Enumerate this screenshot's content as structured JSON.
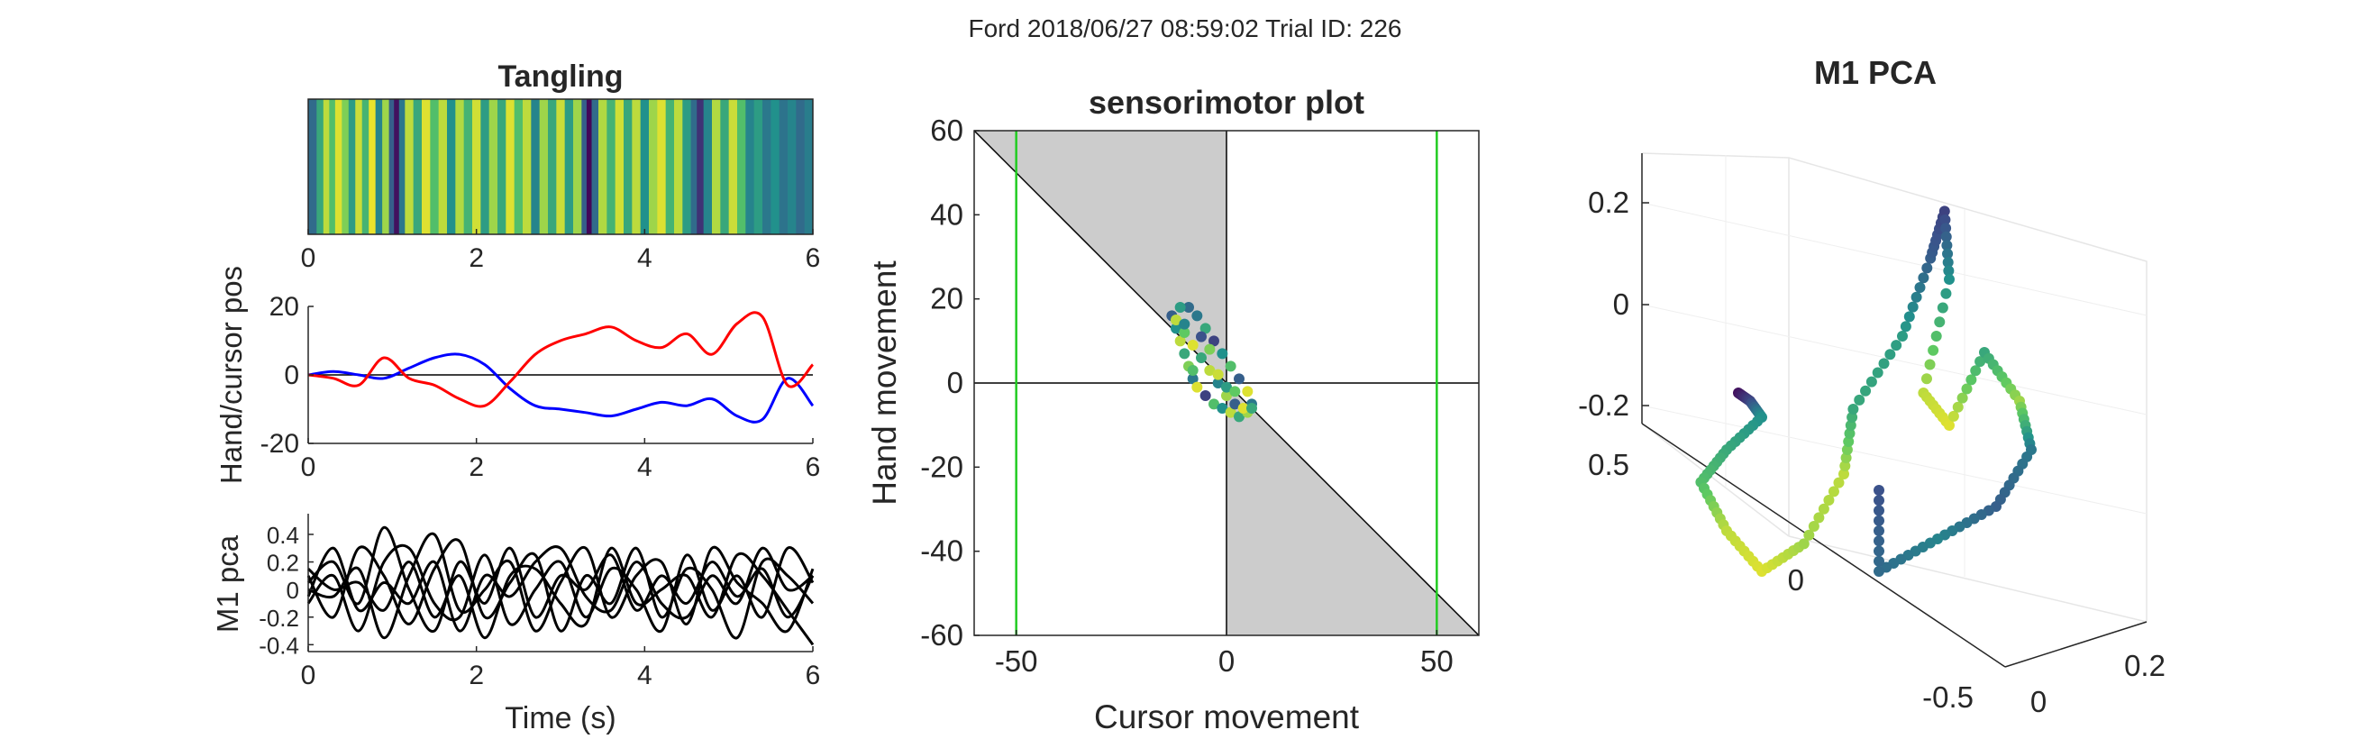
{
  "figure": {
    "suptitle": "Ford 2018/06/27 08:59:02 Trial ID: 226"
  },
  "chart_data": [
    {
      "id": "tangling",
      "type": "heatmap",
      "title": "Tangling",
      "xlim": [
        0,
        6
      ],
      "xticks": [
        "0",
        "2",
        "4",
        "6"
      ],
      "colormap": "viridis",
      "stripes": [
        {
          "x": 0.0,
          "v": 0.35
        },
        {
          "x": 0.1,
          "v": 0.6
        },
        {
          "x": 0.18,
          "v": 0.9
        },
        {
          "x": 0.25,
          "v": 0.7
        },
        {
          "x": 0.32,
          "v": 0.95
        },
        {
          "x": 0.4,
          "v": 0.8
        },
        {
          "x": 0.48,
          "v": 0.55
        },
        {
          "x": 0.56,
          "v": 0.92
        },
        {
          "x": 0.64,
          "v": 0.65
        },
        {
          "x": 0.72,
          "v": 0.97
        },
        {
          "x": 0.8,
          "v": 0.45
        },
        {
          "x": 0.88,
          "v": 0.85
        },
        {
          "x": 0.96,
          "v": 0.3
        },
        {
          "x": 1.02,
          "v": 0.05
        },
        {
          "x": 1.08,
          "v": 0.4
        },
        {
          "x": 1.15,
          "v": 0.9
        },
        {
          "x": 1.25,
          "v": 0.6
        },
        {
          "x": 1.35,
          "v": 0.95
        },
        {
          "x": 1.45,
          "v": 0.7
        },
        {
          "x": 1.55,
          "v": 0.9
        },
        {
          "x": 1.65,
          "v": 0.5
        },
        {
          "x": 1.75,
          "v": 0.88
        },
        {
          "x": 1.85,
          "v": 0.65
        },
        {
          "x": 1.95,
          "v": 0.93
        },
        {
          "x": 2.05,
          "v": 0.55
        },
        {
          "x": 2.15,
          "v": 0.85
        },
        {
          "x": 2.25,
          "v": 0.6
        },
        {
          "x": 2.35,
          "v": 0.95
        },
        {
          "x": 2.45,
          "v": 0.7
        },
        {
          "x": 2.55,
          "v": 0.9
        },
        {
          "x": 2.65,
          "v": 0.45
        },
        {
          "x": 2.75,
          "v": 0.85
        },
        {
          "x": 2.85,
          "v": 0.6
        },
        {
          "x": 2.95,
          "v": 0.92
        },
        {
          "x": 3.05,
          "v": 0.55
        },
        {
          "x": 3.15,
          "v": 0.85
        },
        {
          "x": 3.25,
          "v": 0.3
        },
        {
          "x": 3.31,
          "v": 0.02
        },
        {
          "x": 3.37,
          "v": 0.35
        },
        {
          "x": 3.45,
          "v": 0.88
        },
        {
          "x": 3.55,
          "v": 0.65
        },
        {
          "x": 3.65,
          "v": 0.93
        },
        {
          "x": 3.75,
          "v": 0.6
        },
        {
          "x": 3.85,
          "v": 0.9
        },
        {
          "x": 3.95,
          "v": 0.5
        },
        {
          "x": 4.05,
          "v": 0.85
        },
        {
          "x": 4.15,
          "v": 0.95
        },
        {
          "x": 4.25,
          "v": 0.65
        },
        {
          "x": 4.35,
          "v": 0.9
        },
        {
          "x": 4.45,
          "v": 0.55
        },
        {
          "x": 4.55,
          "v": 0.35
        },
        {
          "x": 4.62,
          "v": 0.15
        },
        {
          "x": 4.7,
          "v": 0.45
        },
        {
          "x": 4.8,
          "v": 0.88
        },
        {
          "x": 4.9,
          "v": 0.6
        },
        {
          "x": 5.0,
          "v": 0.92
        },
        {
          "x": 5.1,
          "v": 0.7
        },
        {
          "x": 5.2,
          "v": 0.45
        },
        {
          "x": 5.3,
          "v": 0.55
        },
        {
          "x": 5.4,
          "v": 0.4
        },
        {
          "x": 5.5,
          "v": 0.5
        },
        {
          "x": 5.6,
          "v": 0.38
        },
        {
          "x": 5.7,
          "v": 0.45
        },
        {
          "x": 5.8,
          "v": 0.35
        },
        {
          "x": 5.9,
          "v": 0.42
        }
      ]
    },
    {
      "id": "hand-cursor",
      "type": "line",
      "ylabel": "Hand/cursor pos",
      "xlim": [
        0,
        6
      ],
      "ylim": [
        -20,
        20
      ],
      "xticks": [
        "0",
        "2",
        "4",
        "6"
      ],
      "yticks": [
        "-20",
        "0",
        "20"
      ],
      "reference_line": 0,
      "series": [
        {
          "color": "#0000ff",
          "x": [
            0,
            0.3,
            0.6,
            0.9,
            1.2,
            1.5,
            1.8,
            2.1,
            2.4,
            2.7,
            3.0,
            3.3,
            3.6,
            3.9,
            4.2,
            4.5,
            4.8,
            5.1,
            5.4,
            5.7,
            6.0
          ],
          "y": [
            0,
            1,
            0,
            -1,
            2,
            5,
            6,
            3,
            -4,
            -9,
            -10,
            -11,
            -12,
            -10,
            -8,
            -9,
            -7,
            -12,
            -13,
            -1,
            -9
          ]
        },
        {
          "color": "#ff0000",
          "x": [
            0,
            0.3,
            0.6,
            0.9,
            1.2,
            1.5,
            1.8,
            2.1,
            2.4,
            2.7,
            3.0,
            3.3,
            3.6,
            3.9,
            4.2,
            4.5,
            4.8,
            5.1,
            5.4,
            5.7,
            6.0
          ],
          "y": [
            0,
            -1,
            -3,
            5,
            -1,
            -3,
            -7,
            -9,
            -2,
            6,
            10,
            12,
            14,
            10,
            8,
            12,
            6,
            15,
            17,
            -3,
            3
          ]
        }
      ]
    },
    {
      "id": "m1-pca-time",
      "type": "line",
      "ylabel": "M1 pca",
      "xlabel": "Time (s)",
      "xlim": [
        0,
        6
      ],
      "ylim": [
        -0.45,
        0.55
      ],
      "xticks": [
        "0",
        "2",
        "4",
        "6"
      ],
      "yticks": [
        "-0.4",
        "-0.2",
        "0",
        "0.2",
        "0.4"
      ],
      "series": [
        {
          "color": "#000000",
          "y": [
            0.05,
            0.2,
            -0.1,
            0.45,
            0.0,
            -0.3,
            0.2,
            -0.1,
            0.3,
            -0.2,
            0.1,
            0.0,
            0.25,
            -0.15,
            0.1,
            -0.1,
            0.2,
            -0.05,
            0.15,
            -0.2,
            0.1
          ]
        },
        {
          "color": "#000000",
          "y": [
            0.1,
            -0.2,
            0.3,
            0.1,
            -0.25,
            0.15,
            0.35,
            -0.2,
            0.05,
            0.25,
            -0.3,
            0.1,
            -0.1,
            0.3,
            -0.2,
            0.15,
            0.0,
            -0.35,
            0.2,
            0.1,
            -0.1
          ]
        },
        {
          "color": "#000000",
          "y": [
            -0.1,
            0.1,
            -0.3,
            0.2,
            0.3,
            -0.1,
            -0.2,
            0.25,
            -0.25,
            0.0,
            0.2,
            -0.2,
            0.15,
            0.0,
            -0.3,
            0.25,
            -0.15,
            0.1,
            -0.2,
            0.3,
            0.05
          ]
        },
        {
          "color": "#000000",
          "y": [
            0.0,
            -0.05,
            0.15,
            -0.35,
            0.1,
            0.4,
            -0.15,
            0.0,
            0.2,
            -0.3,
            0.05,
            0.3,
            -0.2,
            0.1,
            0.2,
            -0.25,
            0.3,
            0.05,
            -0.1,
            -0.3,
            0.15
          ]
        },
        {
          "color": "#000000",
          "y": [
            0.15,
            0.0,
            0.05,
            -0.15,
            0.2,
            -0.2,
            0.1,
            -0.35,
            0.1,
            0.15,
            -0.1,
            -0.25,
            0.3,
            -0.1,
            0.0,
            0.1,
            -0.2,
            0.25,
            0.1,
            -0.15,
            -0.4
          ]
        },
        {
          "color": "#000000",
          "y": [
            -0.05,
            0.3,
            -0.15,
            0.05,
            -0.1,
            0.2,
            -0.3,
            0.1,
            -0.05,
            0.2,
            0.3,
            -0.05,
            -0.15,
            0.2,
            -0.1,
            -0.2,
            0.1,
            -0.1,
            0.3,
            0.0,
            0.1
          ]
        }
      ]
    },
    {
      "id": "sensorimotor",
      "type": "scatter",
      "title": "sensorimotor plot",
      "xlabel": "Cursor movement",
      "ylabel": "Hand movement",
      "xlim": [
        -60,
        60
      ],
      "ylim": [
        -60,
        60
      ],
      "xticks": [
        "-50",
        "0",
        "50"
      ],
      "yticks": [
        "-60",
        "-40",
        "-20",
        "0",
        "20",
        "40",
        "60"
      ],
      "vertical_guides": [
        -50,
        50
      ],
      "points": [
        {
          "x": -13,
          "y": 16,
          "v": 0.3
        },
        {
          "x": -12,
          "y": 13,
          "v": 0.5
        },
        {
          "x": -11,
          "y": 10,
          "v": 0.9
        },
        {
          "x": -10,
          "y": 7,
          "v": 0.6
        },
        {
          "x": -9,
          "y": 4,
          "v": 0.8
        },
        {
          "x": -8,
          "y": 1,
          "v": 0.4
        },
        {
          "x": -7,
          "y": -1,
          "v": 0.95
        },
        {
          "x": -5,
          "y": -3,
          "v": 0.2
        },
        {
          "x": -3,
          "y": -5,
          "v": 0.7
        },
        {
          "x": -1,
          "y": -6,
          "v": 0.5
        },
        {
          "x": 1,
          "y": -7,
          "v": 0.9
        },
        {
          "x": 3,
          "y": -8,
          "v": 0.6
        },
        {
          "x": 5,
          "y": -7,
          "v": 0.85
        },
        {
          "x": 6,
          "y": -5,
          "v": 0.4
        },
        {
          "x": 5,
          "y": -2,
          "v": 0.95
        },
        {
          "x": 3,
          "y": 1,
          "v": 0.3
        },
        {
          "x": 1,
          "y": 4,
          "v": 0.7
        },
        {
          "x": -1,
          "y": 7,
          "v": 0.5
        },
        {
          "x": -3,
          "y": 10,
          "v": 0.2
        },
        {
          "x": -5,
          "y": 13,
          "v": 0.6
        },
        {
          "x": -7,
          "y": 16,
          "v": 0.4
        },
        {
          "x": -9,
          "y": 18,
          "v": 0.35
        },
        {
          "x": -11,
          "y": 18,
          "v": 0.55
        },
        {
          "x": -12,
          "y": 15,
          "v": 0.9
        },
        {
          "x": -10,
          "y": 12,
          "v": 0.75
        },
        {
          "x": -8,
          "y": 9,
          "v": 0.95
        },
        {
          "x": -6,
          "y": 6,
          "v": 0.6
        },
        {
          "x": -4,
          "y": 3,
          "v": 0.9
        },
        {
          "x": -2,
          "y": 0,
          "v": 0.45
        },
        {
          "x": 0,
          "y": -3,
          "v": 0.85
        },
        {
          "x": 2,
          "y": -5,
          "v": 0.3
        },
        {
          "x": 4,
          "y": -6,
          "v": 0.95
        },
        {
          "x": 6,
          "y": -6,
          "v": 0.6
        },
        {
          "x": -6,
          "y": 11,
          "v": 0.25
        },
        {
          "x": -4,
          "y": 8,
          "v": 0.8
        },
        {
          "x": -8,
          "y": 3,
          "v": 0.7
        },
        {
          "x": -10,
          "y": 14,
          "v": 0.45
        },
        {
          "x": -2,
          "y": 2,
          "v": 0.92
        },
        {
          "x": 0,
          "y": -1,
          "v": 0.55
        },
        {
          "x": 2,
          "y": -2,
          "v": 0.75
        }
      ]
    },
    {
      "id": "m1-pca-3d",
      "type": "scatter",
      "title": "M1 PCA",
      "zticks": [
        "-0.2",
        "0",
        "0.2"
      ],
      "yticks": [
        "0.5",
        "0",
        "-0.5"
      ],
      "xticks": [
        "0",
        "0.2"
      ],
      "trajectory": [
        {
          "x": -0.4,
          "y": 0.2,
          "z": 0.0,
          "v": 0.05
        },
        {
          "x": -0.35,
          "y": 0.15,
          "z": -0.02,
          "v": 0.2
        },
        {
          "x": -0.3,
          "y": 0.1,
          "z": -0.05,
          "v": 0.5
        },
        {
          "x": -0.35,
          "y": 0.05,
          "z": -0.1,
          "v": 0.6
        },
        {
          "x": -0.38,
          "y": 0.0,
          "z": -0.15,
          "v": 0.7
        },
        {
          "x": -0.3,
          "y": -0.05,
          "z": -0.22,
          "v": 0.9
        },
        {
          "x": -0.2,
          "y": -0.1,
          "z": -0.28,
          "v": 0.95
        },
        {
          "x": -0.1,
          "y": -0.12,
          "z": -0.25,
          "v": 0.85
        },
        {
          "x": -0.05,
          "y": -0.05,
          "z": -0.15,
          "v": 0.9
        },
        {
          "x": -0.08,
          "y": 0.05,
          "z": -0.05,
          "v": 0.6
        },
        {
          "x": 0.0,
          "y": 0.1,
          "z": 0.05,
          "v": 0.55
        },
        {
          "x": 0.05,
          "y": 0.12,
          "z": 0.15,
          "v": 0.3
        },
        {
          "x": 0.1,
          "y": 0.08,
          "z": 0.2,
          "v": 0.2
        },
        {
          "x": 0.15,
          "y": 0.0,
          "z": 0.1,
          "v": 0.5
        },
        {
          "x": 0.12,
          "y": -0.05,
          "z": -0.05,
          "v": 0.9
        },
        {
          "x": 0.2,
          "y": -0.1,
          "z": -0.1,
          "v": 0.95
        },
        {
          "x": 0.25,
          "y": -0.05,
          "z": 0.0,
          "v": 0.6
        },
        {
          "x": 0.3,
          "y": 0.0,
          "z": -0.05,
          "v": 0.85
        },
        {
          "x": 0.35,
          "y": -0.05,
          "z": -0.12,
          "v": 0.4
        },
        {
          "x": 0.3,
          "y": -0.1,
          "z": -0.2,
          "v": 0.3
        },
        {
          "x": 0.2,
          "y": -0.15,
          "z": -0.25,
          "v": 0.45
        },
        {
          "x": 0.1,
          "y": -0.2,
          "z": -0.3,
          "v": 0.35
        },
        {
          "x": 0.05,
          "y": -0.1,
          "z": -0.18,
          "v": 0.25
        }
      ]
    }
  ]
}
